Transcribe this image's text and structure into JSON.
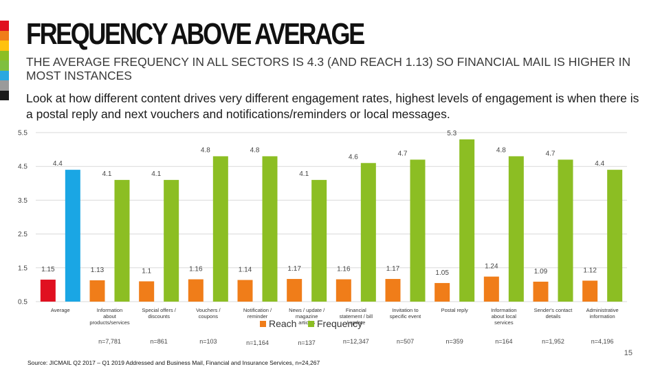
{
  "slide": {
    "title": "FREQUENCY ABOVE AVERAGE",
    "subtitle": "THE AVERAGE FREQUENCY IN ALL SECTORS IS 4.3 (AND REACH 1.13) SO FINANCIAL MAIL IS HIGHER IN MOST INSTANCES",
    "description": "Look at how different content drives very different engagement rates, highest levels of engagement is when there is a postal reply and next vouchers and notifications/reminders or local messages.",
    "page_number": "15",
    "source": "Source: JICMAIL Q2 2017 – Q1 2019 Addressed and Business Mail, Financial and Insurance Services, n=24,267"
  },
  "colors": {
    "reach": "#f07d19",
    "frequency": "#8cbe23",
    "average_reach": "#e01020",
    "average_frequency": "#1aa6e4",
    "strip": [
      "#e01020",
      "#f07d19",
      "#ffc20e",
      "#8cbe23",
      "#7fbf3f",
      "#29a8e0",
      "#9a9a9a",
      "#1a1a1a"
    ]
  },
  "chart_data": {
    "type": "bar",
    "ylim": [
      0.5,
      5.5
    ],
    "yticks": [
      "0.5",
      "1.5",
      "2.5",
      "3.5",
      "4.5",
      "5.5"
    ],
    "categories": [
      "Average",
      "Information about products/services",
      "Special offers / discounts",
      "Vouchers / coupons",
      "Notification / reminder",
      "News / update / magazine articles",
      "Financial statement / bill / update",
      "Invitation to specific event",
      "Postal reply",
      "Information about local services",
      "Sender's contact details",
      "Administrative information"
    ],
    "sample_sizes": [
      "",
      "n=7,781",
      "n=861",
      "n=103",
      "n=1,164",
      "n=137",
      "n=12,347",
      "n=507",
      "n=359",
      "n=164",
      "n=1,952",
      "n=4,196"
    ],
    "series": [
      {
        "name": "Reach",
        "values": [
          1.15,
          1.13,
          1.1,
          1.16,
          1.14,
          1.17,
          1.16,
          1.17,
          1.05,
          1.24,
          1.09,
          1.12
        ],
        "labels": [
          "1.15",
          "1.13",
          "1.1",
          "1.16",
          "1.14",
          "1.17",
          "1.16",
          "1.17",
          "1.05",
          "1.24",
          "1.09",
          "1.12"
        ]
      },
      {
        "name": "Frequency",
        "values": [
          4.4,
          4.1,
          4.1,
          4.8,
          4.8,
          4.1,
          4.6,
          4.7,
          5.3,
          4.8,
          4.7,
          4.4
        ],
        "labels": [
          "4.4",
          "4.1",
          "4.1",
          "4.8",
          "4.8",
          "4.1",
          "4.6",
          "4.7",
          "5.3",
          "4.8",
          "4.7",
          "4.4"
        ]
      }
    ],
    "legend": {
      "position": "bottom-center",
      "items": [
        "Reach",
        "Frequency"
      ]
    },
    "grid": true
  }
}
